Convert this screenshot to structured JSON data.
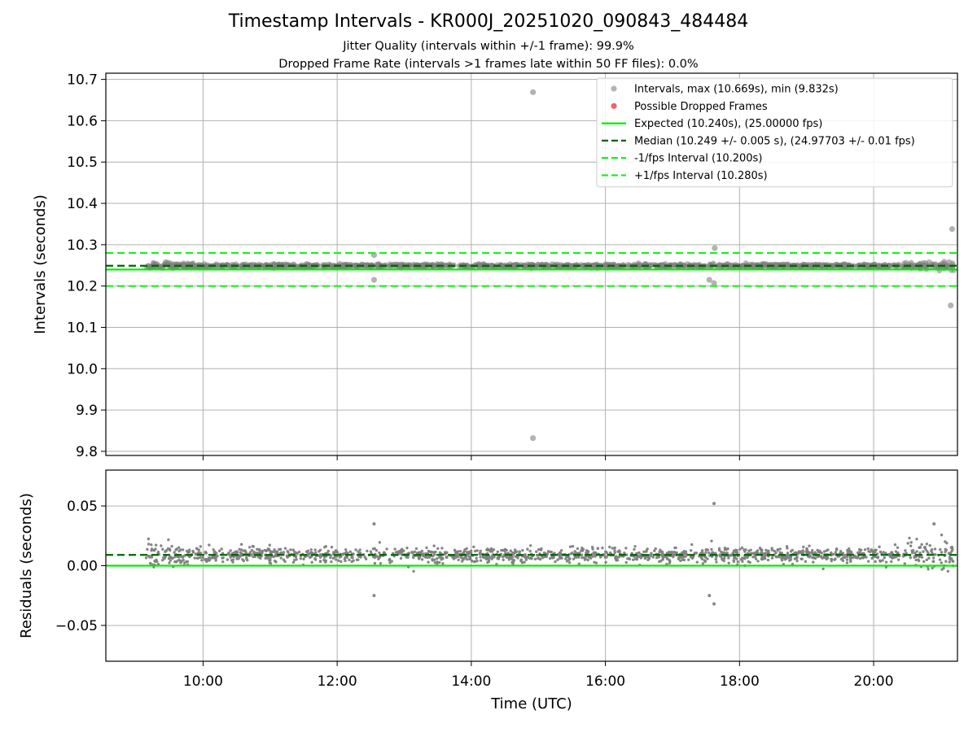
{
  "title": "Timestamp Intervals - KR000J_20251020_090843_484484",
  "subtitle_jitter": "Jitter Quality (intervals within +/-1 frame): 99.9%",
  "subtitle_dropped": "Dropped Frame Rate (intervals >1 frames late within 50 FF files): 0.0%",
  "colors": {
    "points": "#808080",
    "dropped": "#e8313a",
    "expected": "#00ee00",
    "median": "#006400",
    "interval": "#1eee1e",
    "grid": "#b0b0b0"
  },
  "chart_data": [
    {
      "type": "scatter",
      "name": "intervals",
      "ylabel": "Intervals (seconds)",
      "xlabel": "",
      "xlim": [
        8.55,
        21.25
      ],
      "ylim": [
        9.79,
        10.715
      ],
      "yticks": [
        9.8,
        9.9,
        10.0,
        10.1,
        10.2,
        10.3,
        10.4,
        10.5,
        10.6,
        10.7
      ],
      "ytick_labels": [
        "9.8",
        "9.9",
        "10.0",
        "10.1",
        "10.2",
        "10.3",
        "10.4",
        "10.5",
        "10.6",
        "10.7"
      ],
      "xticks": [
        10,
        12,
        14,
        16,
        18,
        20
      ],
      "grid": true,
      "legend_position": "top-right",
      "legend": [
        {
          "label": "Intervals, max (10.669s), min (9.832s)",
          "marker": "circle",
          "color": "#808080"
        },
        {
          "label": "Possible Dropped Frames",
          "marker": "circle",
          "color": "#e8313a"
        },
        {
          "label": "Expected (10.240s), (25.00000 fps)",
          "marker": "solid",
          "color": "#00ee00"
        },
        {
          "label": "Median (10.249 +/- 0.005 s), (24.97703 +/- 0.01 fps)",
          "marker": "dashed",
          "color": "#006400"
        },
        {
          "label": "-1/fps Interval (10.200s)",
          "marker": "dashed",
          "color": "#1eee1e"
        },
        {
          "label": "+1/fps Interval (10.280s)",
          "marker": "dashed",
          "color": "#1eee1e"
        }
      ],
      "hlines": [
        {
          "name": "expected",
          "y": 10.24,
          "style": "solid",
          "color": "#00ee00"
        },
        {
          "name": "median",
          "y": 10.249,
          "style": "dashed",
          "color": "#006400"
        },
        {
          "name": "minus-one-fps",
          "y": 10.2,
          "style": "dashed",
          "color": "#1eee1e"
        },
        {
          "name": "plus-one-fps",
          "y": 10.28,
          "style": "dashed",
          "color": "#1eee1e"
        }
      ],
      "series": {
        "name": "Intervals",
        "x_start": 9.15,
        "x_end": 21.2,
        "baseline": 10.249,
        "typical_spread": 0.008,
        "outliers": [
          {
            "x": 14.92,
            "y": 10.669
          },
          {
            "x": 14.92,
            "y": 9.832
          },
          {
            "x": 12.55,
            "y": 10.275
          },
          {
            "x": 12.55,
            "y": 10.215
          },
          {
            "x": 17.63,
            "y": 10.292
          },
          {
            "x": 17.55,
            "y": 10.215
          },
          {
            "x": 17.62,
            "y": 10.207
          },
          {
            "x": 21.17,
            "y": 10.338
          },
          {
            "x": 21.15,
            "y": 10.153
          }
        ]
      }
    },
    {
      "type": "scatter",
      "name": "residuals",
      "ylabel": "Residuals (seconds)",
      "xlabel": "Time (UTC)",
      "xlim": [
        8.55,
        21.25
      ],
      "ylim": [
        -0.08,
        0.08
      ],
      "yticks": [
        -0.05,
        0.0,
        0.05
      ],
      "ytick_labels": [
        "−0.05",
        "0.00",
        "0.05"
      ],
      "xticks": [
        10,
        12,
        14,
        16,
        18,
        20
      ],
      "xtick_labels": [
        "10:00",
        "12:00",
        "14:00",
        "16:00",
        "18:00",
        "20:00"
      ],
      "grid": true,
      "hlines": [
        {
          "name": "zero",
          "y": 0.0,
          "style": "solid",
          "color": "#00ee00"
        },
        {
          "name": "median-offset",
          "y": 0.009,
          "style": "dashed",
          "color": "#006400"
        }
      ],
      "series": {
        "name": "Residuals",
        "x_start": 9.15,
        "x_end": 21.2,
        "baseline": 0.009,
        "typical_spread": 0.008,
        "outliers": [
          {
            "x": 12.55,
            "y": 0.035
          },
          {
            "x": 12.55,
            "y": -0.025
          },
          {
            "x": 17.62,
            "y": 0.052
          },
          {
            "x": 17.55,
            "y": -0.025
          },
          {
            "x": 17.62,
            "y": -0.032
          },
          {
            "x": 20.9,
            "y": 0.035
          }
        ]
      }
    }
  ]
}
